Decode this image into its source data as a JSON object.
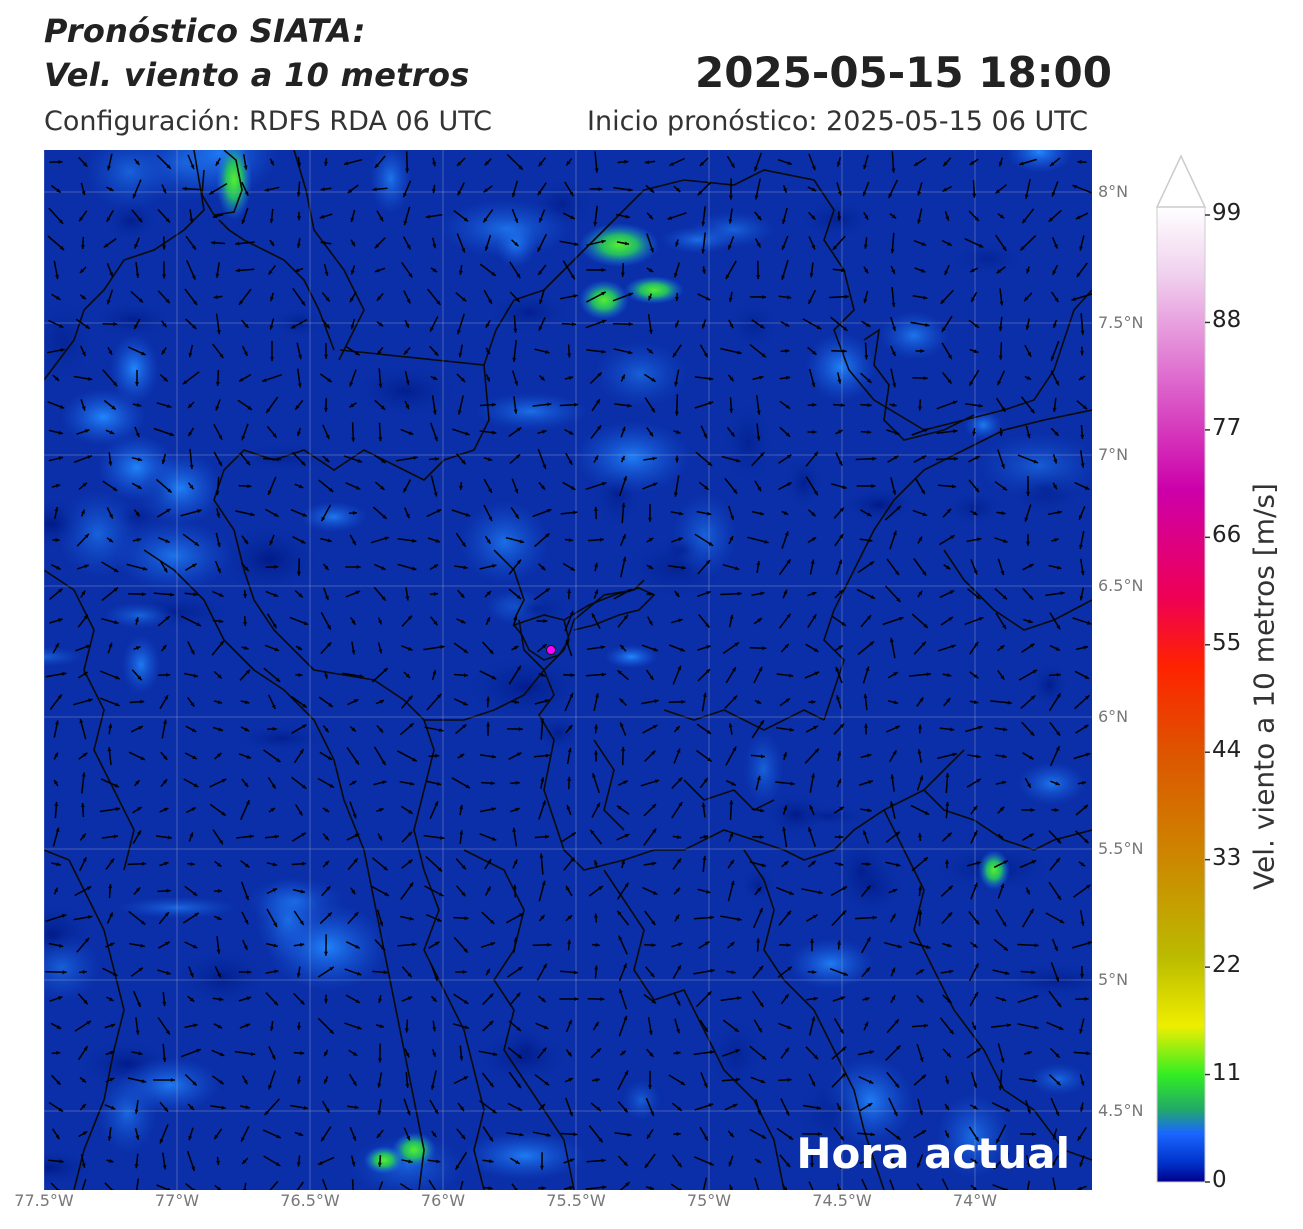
{
  "header": {
    "title_line1": "Pronóstico SIATA:",
    "title_line2": "Vel. viento a 10 metros",
    "datetime": "2025-05-15 18:00",
    "config": "Configuración: RDFS RDA 06 UTC",
    "forecast_start": "Inicio pronóstico: 2025-05-15 06 UTC"
  },
  "map": {
    "badge": "Hora actual",
    "lat_labels": [
      "8°N",
      "7.5°N",
      "7°N",
      "6.5°N",
      "6°N",
      "5.5°N",
      "5°N",
      "4.5°N"
    ],
    "lon_labels": [
      "77.5°W",
      "77°W",
      "76.5°W",
      "76°W",
      "75.5°W",
      "75°W",
      "74.5°W",
      "74°W"
    ],
    "background_color": "#0a2fa8",
    "marker_color": "#ff00ff",
    "arrow_color": "#000000"
  },
  "colorbar": {
    "title": "Vel. viento a 10 metros [m/s]",
    "ticks": [
      "99",
      "88",
      "77",
      "66",
      "55",
      "44",
      "33",
      "22",
      "11",
      "0"
    ],
    "colors": [
      "#00008b",
      "#0033cc",
      "#1a66ff",
      "#22aa66",
      "#33ee22",
      "#eeee00",
      "#bbbb00",
      "#cc8800",
      "#dd5500",
      "#ff2200",
      "#ee0055",
      "#cc00aa",
      "#dd66cc",
      "#f0d0ee",
      "#ffffff"
    ]
  }
}
